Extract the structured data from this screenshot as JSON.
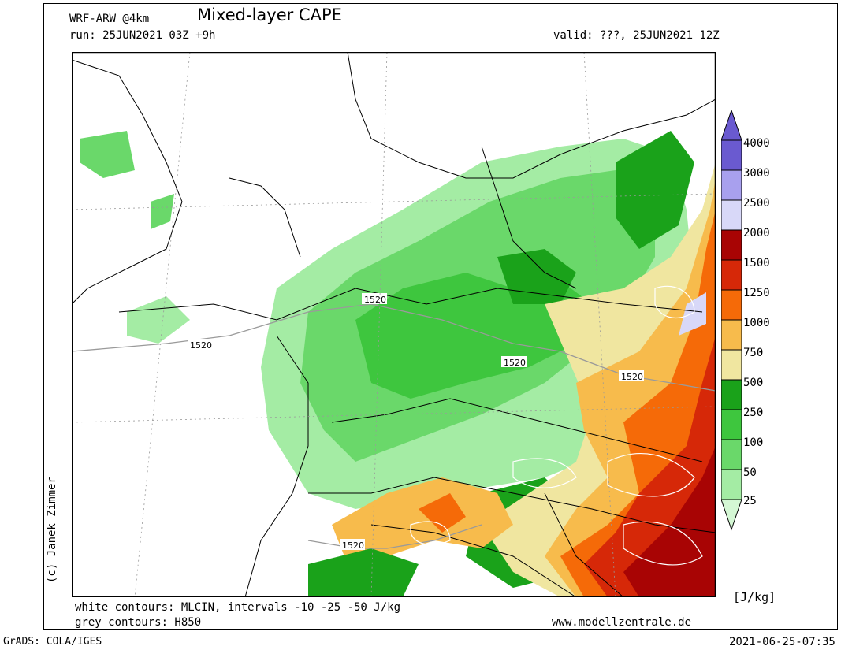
{
  "header": {
    "model": "WRF-ARW @4km",
    "title": "Mixed-layer CAPE",
    "run": "run: 25JUN2021 03Z +9h",
    "valid": "valid: ???, 25JUN2021 12Z"
  },
  "side_credit": "(c) Janek Zimmer",
  "footer": {
    "line1": "white contours: MLCIN, intervals -10 -25 -50 J/kg",
    "line2": "grey contours: H850",
    "site": "www.modellzentrale.de",
    "grads": "GrADS: COLA/IGES",
    "timestamp": "2021-06-25-07:35"
  },
  "colorbar": {
    "unit": "[J/kg]",
    "levels": [
      "25",
      "50",
      "100",
      "250",
      "500",
      "750",
      "1000",
      "1250",
      "1500",
      "2000",
      "2500",
      "3000",
      "4000"
    ],
    "colors": {
      "c25": "#d4f7d4",
      "c50": "#a4eca4",
      "c100": "#6ad86a",
      "c250": "#3ec63e",
      "c500": "#1aa21a",
      "c750": "#f0e6a0",
      "c1000": "#f7bb4c",
      "c1250": "#f56a08",
      "c1500": "#d62808",
      "c2000": "#a80404",
      "c2500": "#d8d8f8",
      "c3000": "#a8a0ee",
      "c4000": "#6a5ad0"
    }
  },
  "contour_labels": [
    "1520",
    "1520",
    "1520",
    "1520",
    "1520"
  ]
}
